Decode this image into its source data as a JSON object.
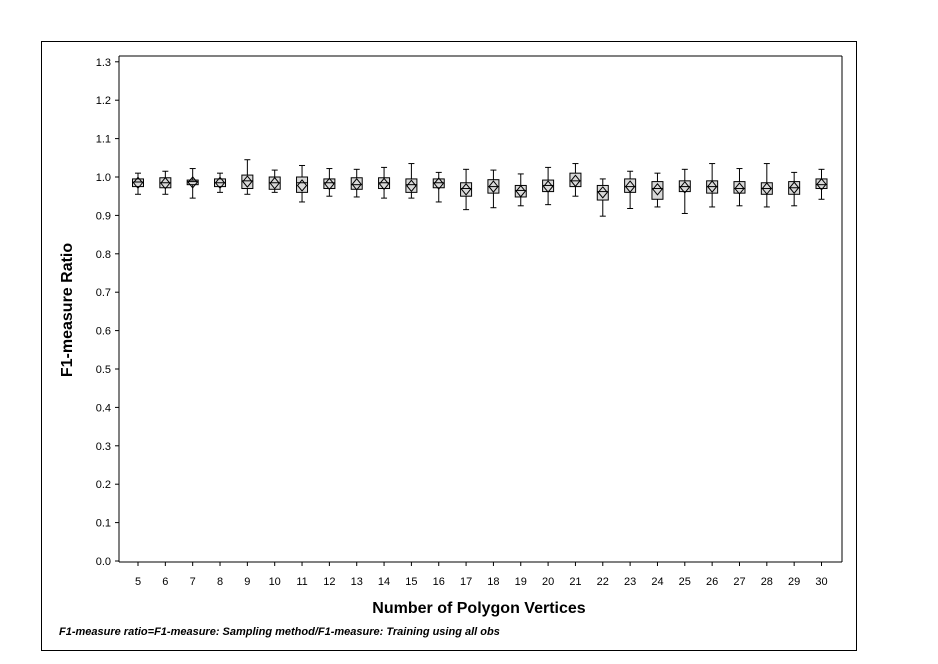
{
  "chart_data": {
    "type": "boxplot",
    "xlabel": "Number of Polygon Vertices",
    "ylabel": "F1-measure Ratio",
    "footnote": "F1-measure ratio=F1-measure: Sampling method/F1-measure: Training using all obs",
    "ylim": [
      0.0,
      1.3
    ],
    "yticks": [
      "0.0",
      "0.1",
      "0.2",
      "0.3",
      "0.4",
      "0.5",
      "0.6",
      "0.7",
      "0.8",
      "0.9",
      "1.0",
      "1.1",
      "1.2",
      "1.3"
    ],
    "categories": [
      "5",
      "6",
      "7",
      "8",
      "9",
      "10",
      "11",
      "12",
      "13",
      "14",
      "15",
      "16",
      "17",
      "18",
      "19",
      "20",
      "21",
      "22",
      "23",
      "24",
      "25",
      "26",
      "27",
      "28",
      "29",
      "30"
    ],
    "boxes": [
      {
        "min": 0.955,
        "q1": 0.975,
        "median": 0.987,
        "q3": 0.995,
        "max": 1.01,
        "mean": 0.985
      },
      {
        "min": 0.955,
        "q1": 0.972,
        "median": 0.985,
        "q3": 0.998,
        "max": 1.015,
        "mean": 0.984
      },
      {
        "min": 0.945,
        "q1": 0.98,
        "median": 0.988,
        "q3": 0.992,
        "max": 1.022,
        "mean": 0.986
      },
      {
        "min": 0.96,
        "q1": 0.975,
        "median": 0.985,
        "q3": 0.995,
        "max": 1.01,
        "mean": 0.985
      },
      {
        "min": 0.955,
        "q1": 0.97,
        "median": 0.99,
        "q3": 1.005,
        "max": 1.045,
        "mean": 0.988
      },
      {
        "min": 0.96,
        "q1": 0.968,
        "median": 0.985,
        "q3": 1.0,
        "max": 1.018,
        "mean": 0.984
      },
      {
        "min": 0.935,
        "q1": 0.96,
        "median": 0.985,
        "q3": 1.0,
        "max": 1.03,
        "mean": 0.978
      },
      {
        "min": 0.95,
        "q1": 0.97,
        "median": 0.985,
        "q3": 0.995,
        "max": 1.022,
        "mean": 0.982
      },
      {
        "min": 0.948,
        "q1": 0.968,
        "median": 0.98,
        "q3": 0.998,
        "max": 1.02,
        "mean": 0.981
      },
      {
        "min": 0.945,
        "q1": 0.97,
        "median": 0.985,
        "q3": 0.998,
        "max": 1.025,
        "mean": 0.982
      },
      {
        "min": 0.945,
        "q1": 0.96,
        "median": 0.98,
        "q3": 0.995,
        "max": 1.035,
        "mean": 0.977
      },
      {
        "min": 0.935,
        "q1": 0.972,
        "median": 0.985,
        "q3": 0.995,
        "max": 1.012,
        "mean": 0.983
      },
      {
        "min": 0.915,
        "q1": 0.95,
        "median": 0.97,
        "q3": 0.985,
        "max": 1.02,
        "mean": 0.968
      },
      {
        "min": 0.92,
        "q1": 0.958,
        "median": 0.975,
        "q3": 0.993,
        "max": 1.018,
        "mean": 0.975
      },
      {
        "min": 0.925,
        "q1": 0.948,
        "median": 0.965,
        "q3": 0.978,
        "max": 1.008,
        "mean": 0.963
      },
      {
        "min": 0.928,
        "q1": 0.962,
        "median": 0.978,
        "q3": 0.992,
        "max": 1.025,
        "mean": 0.975
      },
      {
        "min": 0.95,
        "q1": 0.975,
        "median": 0.99,
        "q3": 1.01,
        "max": 1.035,
        "mean": 0.99
      },
      {
        "min": 0.898,
        "q1": 0.94,
        "median": 0.962,
        "q3": 0.978,
        "max": 0.995,
        "mean": 0.96
      },
      {
        "min": 0.918,
        "q1": 0.96,
        "median": 0.975,
        "q3": 0.995,
        "max": 1.015,
        "mean": 0.975
      },
      {
        "min": 0.922,
        "q1": 0.942,
        "median": 0.97,
        "q3": 0.988,
        "max": 1.01,
        "mean": 0.968
      },
      {
        "min": 0.905,
        "q1": 0.962,
        "median": 0.975,
        "q3": 0.99,
        "max": 1.02,
        "mean": 0.973
      },
      {
        "min": 0.922,
        "q1": 0.958,
        "median": 0.975,
        "q3": 0.99,
        "max": 1.035,
        "mean": 0.975
      },
      {
        "min": 0.925,
        "q1": 0.958,
        "median": 0.97,
        "q3": 0.988,
        "max": 1.022,
        "mean": 0.97
      },
      {
        "min": 0.922,
        "q1": 0.955,
        "median": 0.97,
        "q3": 0.985,
        "max": 1.035,
        "mean": 0.97
      },
      {
        "min": 0.925,
        "q1": 0.955,
        "median": 0.972,
        "q3": 0.988,
        "max": 1.012,
        "mean": 0.972
      },
      {
        "min": 0.942,
        "q1": 0.97,
        "median": 0.98,
        "q3": 0.995,
        "max": 1.02,
        "mean": 0.981
      }
    ]
  },
  "colors": {
    "box_fill": "#d9d9d9",
    "stroke": "#000000",
    "background": "#ffffff"
  }
}
